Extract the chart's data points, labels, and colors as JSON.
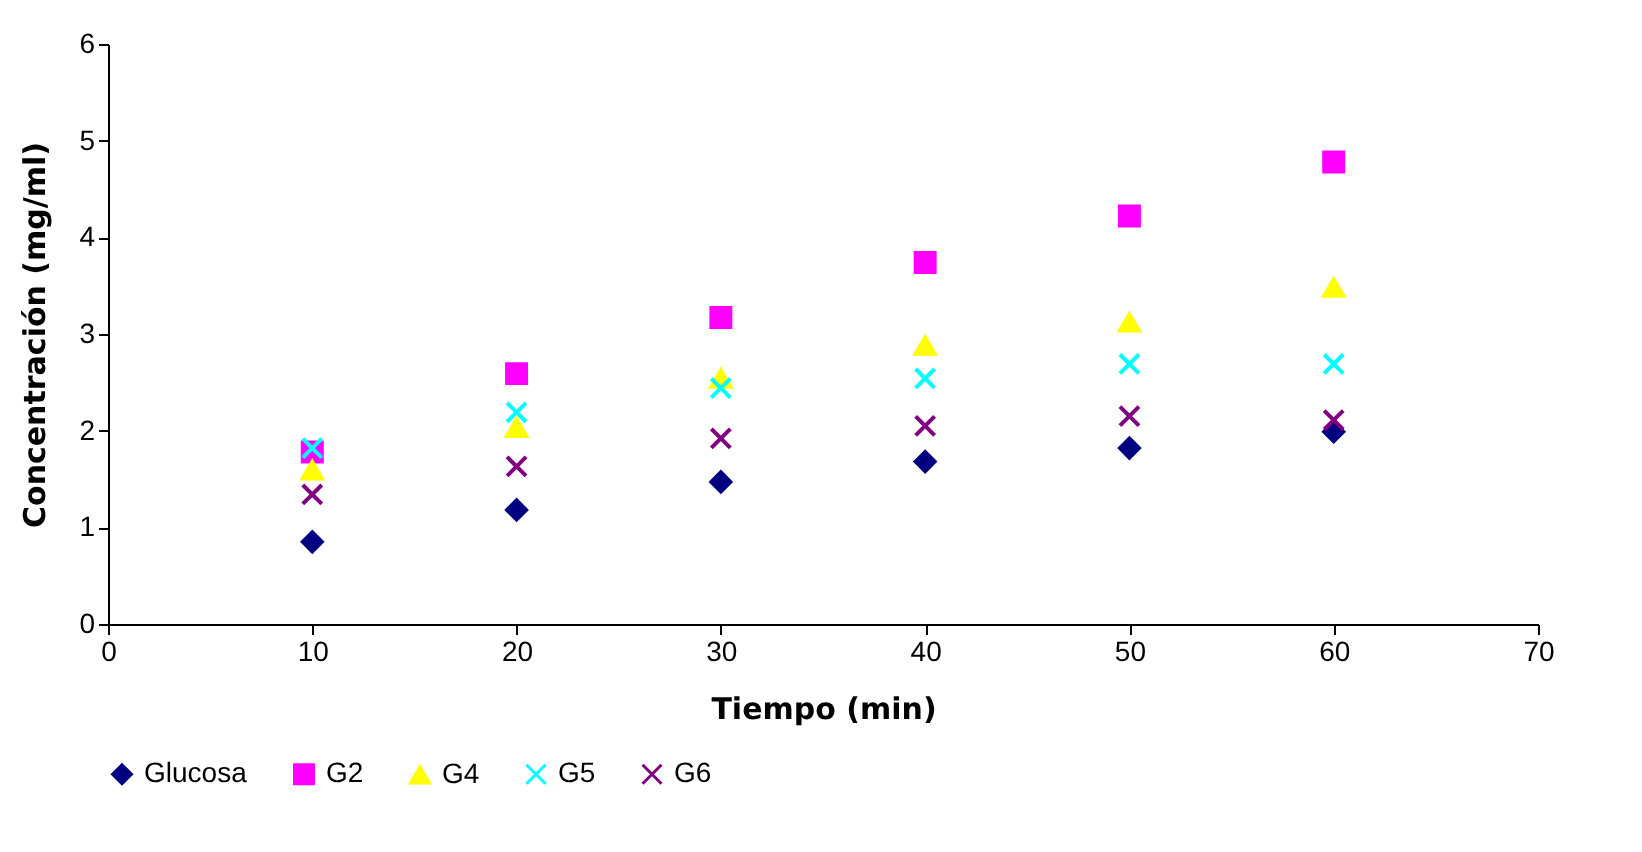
{
  "chart_data": {
    "type": "scatter",
    "xlabel": "Tiempo (min)",
    "ylabel": "Concentración (mg/ml)",
    "x": [
      10,
      20,
      30,
      40,
      50,
      60
    ],
    "series": [
      {
        "name": "Glucosa",
        "color": "#000080",
        "marker": "diamond",
        "values": [
          0.85,
          1.18,
          1.47,
          1.68,
          1.82,
          1.99
        ]
      },
      {
        "name": "G2",
        "color": "#ff00ff",
        "marker": "square",
        "values": [
          1.78,
          2.59,
          3.17,
          3.74,
          4.22,
          4.78
        ]
      },
      {
        "name": "G4",
        "color": "#ffff00",
        "marker": "triangle",
        "values": [
          1.59,
          2.03,
          2.54,
          2.88,
          3.12,
          3.48
        ]
      },
      {
        "name": "G5",
        "color": "#00ffff",
        "marker": "cross",
        "values": [
          1.82,
          2.19,
          2.44,
          2.54,
          2.69,
          2.69
        ]
      },
      {
        "name": "G6",
        "color": "#800080",
        "marker": "cross",
        "values": [
          1.34,
          1.63,
          1.92,
          2.05,
          2.15,
          2.11
        ]
      }
    ],
    "xlim": [
      0,
      70
    ],
    "xticks": [
      0,
      10,
      20,
      30,
      40,
      50,
      60,
      70
    ],
    "ylim": [
      0,
      6
    ],
    "yticks": [
      0,
      1,
      2,
      3,
      4,
      5,
      6
    ],
    "grid": false,
    "legend": "bottom"
  }
}
